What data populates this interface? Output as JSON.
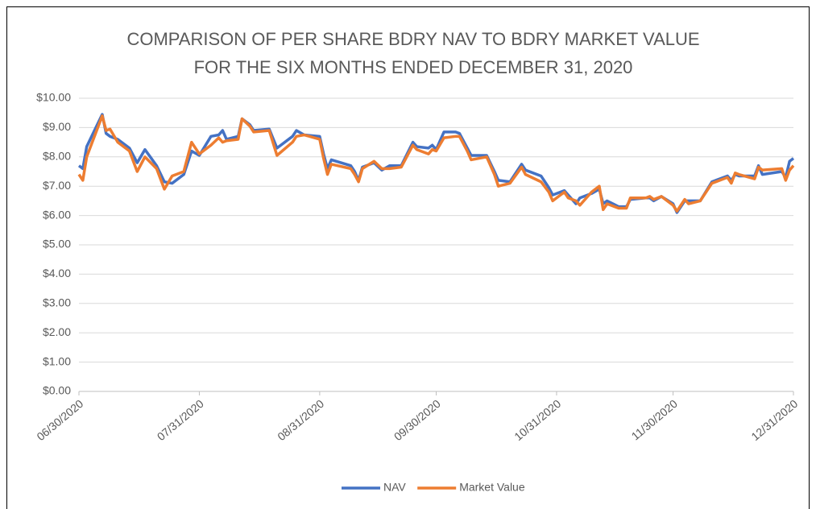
{
  "chart_data": {
    "type": "line",
    "title": [
      "COMPARISON OF PER SHARE BDRY NAV TO BDRY MARKET VALUE",
      "FOR THE SIX MONTHS ENDED DECEMBER 31, 2020"
    ],
    "x": [
      "06/30/2020",
      "07/01/2020",
      "07/02/2020",
      "07/06/2020",
      "07/07/2020",
      "07/08/2020",
      "07/10/2020",
      "07/13/2020",
      "07/15/2020",
      "07/17/2020",
      "07/20/2020",
      "07/22/2020",
      "07/24/2020",
      "07/27/2020",
      "07/29/2020",
      "07/31/2020",
      "08/03/2020",
      "08/05/2020",
      "08/06/2020",
      "08/07/2020",
      "08/10/2020",
      "08/11/2020",
      "08/13/2020",
      "08/14/2020",
      "08/18/2020",
      "08/20/2020",
      "08/24/2020",
      "08/25/2020",
      "08/27/2020",
      "08/31/2020",
      "09/01/2020",
      "09/02/2020",
      "09/03/2020",
      "09/08/2020",
      "09/09/2020",
      "09/10/2020",
      "09/11/2020",
      "09/14/2020",
      "09/16/2020",
      "09/18/2020",
      "09/21/2020",
      "09/24/2020",
      "09/25/2020",
      "09/28/2020",
      "09/29/2020",
      "09/30/2020",
      "10/02/2020",
      "10/05/2020",
      "10/06/2020",
      "10/08/2020",
      "10/09/2020",
      "10/13/2020",
      "10/15/2020",
      "10/16/2020",
      "10/19/2020",
      "10/22/2020",
      "10/23/2020",
      "10/27/2020",
      "10/29/2020",
      "10/30/2020",
      "11/02/2020",
      "11/03/2020",
      "11/05/2020",
      "11/06/2020",
      "11/09/2020",
      "11/11/2020",
      "11/12/2020",
      "11/13/2020",
      "11/16/2020",
      "11/18/2020",
      "11/19/2020",
      "11/23/2020",
      "11/24/2020",
      "11/25/2020",
      "11/27/2020",
      "11/30/2020",
      "12/01/2020",
      "12/03/2020",
      "12/04/2020",
      "12/07/2020",
      "12/10/2020",
      "12/14/2020",
      "12/15/2020",
      "12/16/2020",
      "12/17/2020",
      "12/21/2020",
      "12/22/2020",
      "12/23/2020",
      "12/28/2020",
      "12/29/2020",
      "12/30/2020",
      "12/31/2020"
    ],
    "series": [
      {
        "name": "NAV",
        "color": "#4472c4",
        "values": [
          7.7,
          7.6,
          8.35,
          9.45,
          8.8,
          8.7,
          8.6,
          8.3,
          7.8,
          8.25,
          7.7,
          7.15,
          7.1,
          7.4,
          8.2,
          8.05,
          8.7,
          8.75,
          8.9,
          8.6,
          8.7,
          9.3,
          9.1,
          8.9,
          8.95,
          8.3,
          8.7,
          8.9,
          8.75,
          8.7,
          8.1,
          7.6,
          7.9,
          7.7,
          7.5,
          7.2,
          7.65,
          7.8,
          7.55,
          7.7,
          7.7,
          8.5,
          8.35,
          8.3,
          8.4,
          8.25,
          8.85,
          8.85,
          8.8,
          8.3,
          8.05,
          8.05,
          7.5,
          7.2,
          7.15,
          7.75,
          7.55,
          7.35,
          6.95,
          6.7,
          6.85,
          6.7,
          6.4,
          6.6,
          6.75,
          6.9,
          6.4,
          6.5,
          6.3,
          6.3,
          6.55,
          6.6,
          6.6,
          6.5,
          6.65,
          6.4,
          6.1,
          6.5,
          6.5,
          6.5,
          7.15,
          7.35,
          7.2,
          7.4,
          7.35,
          7.35,
          7.7,
          7.4,
          7.5,
          7.3,
          7.85,
          7.95
        ]
      },
      {
        "name": "Market Value",
        "color": "#ed7d31",
        "values": [
          7.4,
          7.2,
          8.0,
          9.4,
          8.9,
          8.95,
          8.5,
          8.2,
          7.5,
          8.0,
          7.6,
          6.9,
          7.35,
          7.5,
          8.5,
          8.1,
          8.4,
          8.65,
          8.5,
          8.55,
          8.6,
          9.3,
          9.05,
          8.85,
          8.9,
          8.05,
          8.5,
          8.7,
          8.75,
          8.6,
          7.95,
          7.4,
          7.75,
          7.6,
          7.4,
          7.15,
          7.6,
          7.85,
          7.6,
          7.6,
          7.65,
          8.4,
          8.25,
          8.1,
          8.25,
          8.2,
          8.65,
          8.7,
          8.7,
          8.2,
          7.9,
          8.0,
          7.4,
          7.0,
          7.1,
          7.65,
          7.4,
          7.15,
          6.8,
          6.5,
          6.8,
          6.6,
          6.5,
          6.35,
          6.8,
          7.0,
          6.2,
          6.4,
          6.25,
          6.25,
          6.6,
          6.6,
          6.65,
          6.55,
          6.65,
          6.35,
          6.15,
          6.55,
          6.4,
          6.5,
          7.1,
          7.3,
          7.1,
          7.45,
          7.4,
          7.25,
          7.65,
          7.55,
          7.6,
          7.2,
          7.55,
          7.7
        ]
      }
    ],
    "xlim": [
      "06/30/2020",
      "12/31/2020"
    ],
    "xticks": [
      "06/30/2020",
      "07/31/2020",
      "08/31/2020",
      "09/30/2020",
      "10/31/2020",
      "11/30/2020",
      "12/31/2020"
    ],
    "ylim": [
      0,
      10
    ],
    "yticks": [
      {
        "value": 0,
        "label": "$0.00"
      },
      {
        "value": 1,
        "label": "$1.00"
      },
      {
        "value": 2,
        "label": "$2.00"
      },
      {
        "value": 3,
        "label": "$3.00"
      },
      {
        "value": 4,
        "label": "$4.00"
      },
      {
        "value": 5,
        "label": "$5.00"
      },
      {
        "value": 6,
        "label": "$6.00"
      },
      {
        "value": 7,
        "label": "$7.00"
      },
      {
        "value": 8,
        "label": "$8.00"
      },
      {
        "value": 9,
        "label": "$9.00"
      },
      {
        "value": 10,
        "label": "$10.00"
      }
    ],
    "grid": true,
    "legend": "bottom"
  }
}
